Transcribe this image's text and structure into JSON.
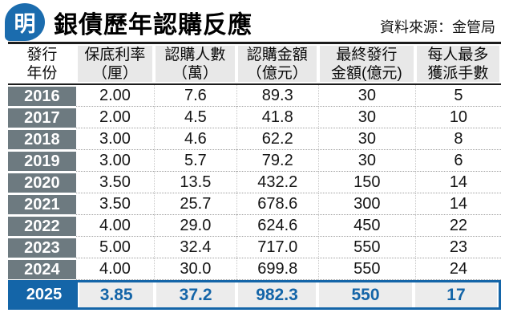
{
  "header": {
    "logo_char": "明",
    "title": "銀債歷年認購反應",
    "source": "資料來源：金管局"
  },
  "colors": {
    "brand_blue": "#1465a8",
    "logo_blue": "#1b6cae",
    "year_cell_gray": "#6d7a80",
    "header_bg_gray": "#e8e8e8",
    "highlight_cell_bg": "#ececec",
    "rule_black": "#1c1c1c"
  },
  "table": {
    "columns": [
      {
        "line1": "發行",
        "line2": "年份"
      },
      {
        "line1": "保底利率",
        "line2": "（厘）"
      },
      {
        "line1": "認購人數",
        "line2": "（萬）"
      },
      {
        "line1": "認購金額",
        "line2": "（億元）"
      },
      {
        "line1": "最終發行",
        "line2": "金額(億元)"
      },
      {
        "line1": "每人最多",
        "line2": "獲派手數"
      }
    ]
  },
  "chart_data": {
    "type": "table",
    "title": "銀債歷年認購反應",
    "source": "資料來源：金管局",
    "columns": [
      "發行年份",
      "保底利率（厘）",
      "認購人數（萬）",
      "認購金額（億元）",
      "最終發行金額(億元)",
      "每人最多獲派手數"
    ],
    "rows": [
      [
        "2016",
        "2.00",
        "7.6",
        "89.3",
        "30",
        "5"
      ],
      [
        "2017",
        "2.00",
        "4.5",
        "41.8",
        "30",
        "10"
      ],
      [
        "2018",
        "3.00",
        "4.6",
        "62.2",
        "30",
        "8"
      ],
      [
        "2019",
        "3.00",
        "5.7",
        "79.2",
        "30",
        "6"
      ],
      [
        "2020",
        "3.50",
        "13.5",
        "432.2",
        "150",
        "14"
      ],
      [
        "2021",
        "3.50",
        "25.7",
        "678.6",
        "300",
        "14"
      ],
      [
        "2022",
        "4.00",
        "29.0",
        "624.6",
        "450",
        "22"
      ],
      [
        "2023",
        "5.00",
        "32.4",
        "717.0",
        "550",
        "23"
      ],
      [
        "2024",
        "4.00",
        "30.0",
        "699.8",
        "550",
        "24"
      ],
      [
        "2025",
        "3.85",
        "37.2",
        "982.3",
        "550",
        "17"
      ]
    ],
    "highlighted_row": "2025"
  }
}
